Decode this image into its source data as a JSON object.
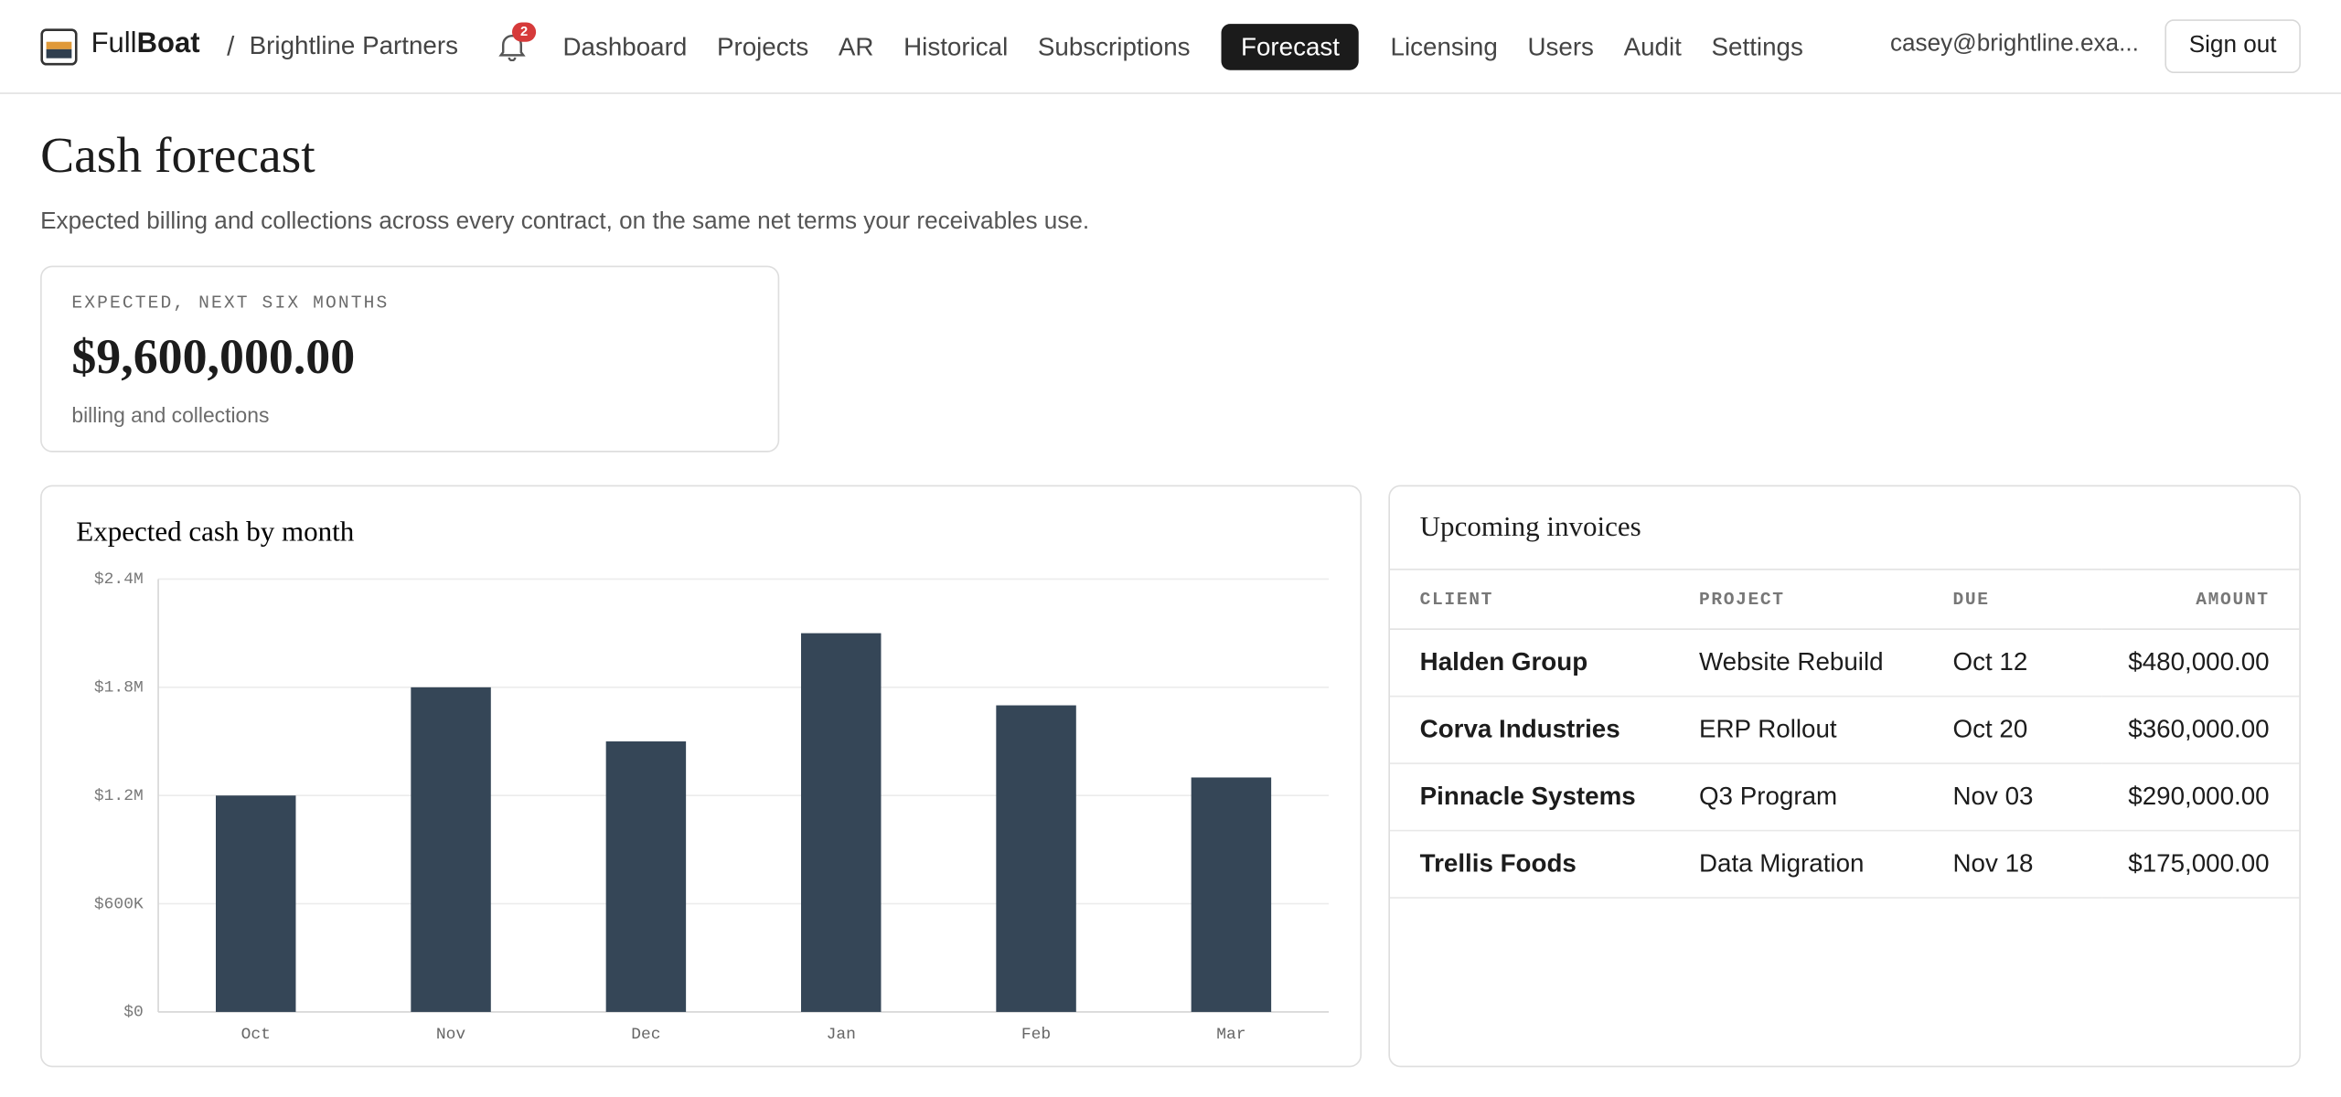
{
  "nav": {
    "brand_prefix": "Full",
    "brand_bold": "Boat",
    "separator": "/",
    "org": "Brightline Partners",
    "notifications": "2",
    "links": [
      {
        "label": "Dashboard",
        "active": false
      },
      {
        "label": "Projects",
        "active": false
      },
      {
        "label": "AR",
        "active": false
      },
      {
        "label": "Historical",
        "active": false
      },
      {
        "label": "Subscriptions",
        "active": false
      },
      {
        "label": "Forecast",
        "active": true
      },
      {
        "label": "Licensing",
        "active": false
      },
      {
        "label": "Users",
        "active": false
      },
      {
        "label": "Audit",
        "active": false
      },
      {
        "label": "Settings",
        "active": false
      }
    ],
    "user": "casey@brightline.exa...",
    "sign_out": "Sign out"
  },
  "header": {
    "title": "Cash forecast",
    "subtitle": "Expected billing and collections across every contract, on the same net terms your receivables use."
  },
  "summary": {
    "label": "EXPECTED, NEXT SIX MONTHS",
    "value": "$9,600,000.00",
    "note": "billing and collections"
  },
  "chart_data": {
    "type": "bar",
    "title": "Expected cash by month",
    "categories": [
      "Oct",
      "Nov",
      "Dec",
      "Jan",
      "Feb",
      "Mar"
    ],
    "values": [
      1200000,
      1800000,
      1500000,
      2100000,
      1700000,
      1300000
    ],
    "color": "#354657",
    "ylim": [
      0,
      2400000
    ],
    "yticks": [
      {
        "value": 0,
        "label": "$0"
      },
      {
        "value": 600000,
        "label": "$600K"
      },
      {
        "value": 1200000,
        "label": "$1.2M"
      },
      {
        "value": 1800000,
        "label": "$1.8M"
      },
      {
        "value": 2400000,
        "label": "$2.4M"
      }
    ],
    "grid": true
  },
  "invoices": {
    "title": "Upcoming invoices",
    "columns": [
      "CLIENT",
      "PROJECT",
      "DUE",
      "AMOUNT"
    ],
    "rows": [
      [
        "Halden Group",
        "Website Rebuild",
        "Oct 12",
        "$480,000.00"
      ],
      [
        "Corva Industries",
        "ERP Rollout",
        "Oct 20",
        "$360,000.00"
      ],
      [
        "Pinnacle Systems",
        "Q3 Program",
        "Nov 03",
        "$290,000.00"
      ],
      [
        "Trellis Foods",
        "Data Migration",
        "Nov 18",
        "$175,000.00"
      ]
    ]
  }
}
